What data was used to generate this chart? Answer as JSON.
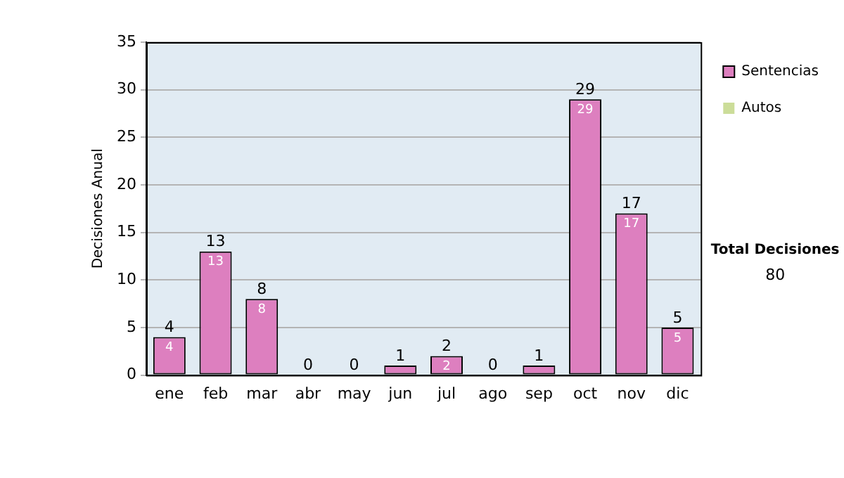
{
  "chart_data": {
    "type": "bar",
    "ylabel": "Decisiones Anual",
    "categories": [
      "ene",
      "feb",
      "mar",
      "abr",
      "may",
      "jun",
      "jul",
      "ago",
      "sep",
      "oct",
      "nov",
      "dic"
    ],
    "series": [
      {
        "name": "Sentencias",
        "color": "#dd7fbf",
        "values": [
          4,
          13,
          8,
          0,
          0,
          1,
          2,
          0,
          1,
          29,
          17,
          5
        ],
        "value_labels": [
          "4",
          "13",
          "8",
          null,
          null,
          null,
          "2",
          null,
          null,
          "29",
          "17",
          "5"
        ]
      },
      {
        "name": "Autos",
        "color": "#ccdd99",
        "values": [
          0,
          0,
          0,
          0,
          0,
          0,
          0,
          0,
          0,
          0,
          0,
          0
        ]
      }
    ],
    "stacked": true,
    "totals": [
      "4",
      "13",
      "8",
      "0",
      "0",
      "1",
      "2",
      "0",
      "1",
      "29",
      "17",
      "5"
    ],
    "ylim": [
      0,
      35
    ],
    "yticks": [
      0,
      5,
      10,
      15,
      20,
      25,
      30,
      35
    ],
    "grid": "y",
    "legend": "right",
    "annotations": [
      "Total Decisiones",
      "80"
    ]
  }
}
